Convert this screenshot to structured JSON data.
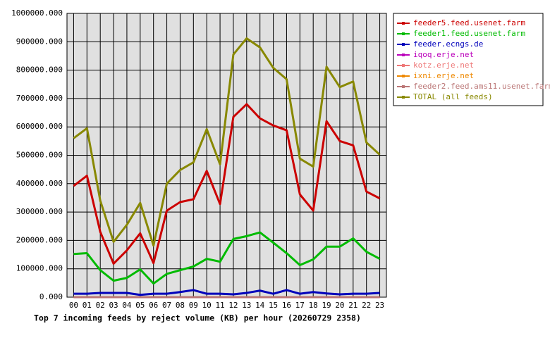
{
  "chart_data": {
    "type": "line",
    "title": "Top 7 incoming feeds by reject volume (KB) per hour (20260729 2358)",
    "categories": [
      "00",
      "01",
      "02",
      "03",
      "04",
      "05",
      "06",
      "07",
      "08",
      "09",
      "10",
      "11",
      "12",
      "13",
      "14",
      "15",
      "16",
      "17",
      "18",
      "19",
      "20",
      "21",
      "22",
      "23"
    ],
    "ylim": [
      0,
      1000000
    ],
    "yticks": [
      {
        "value": 0,
        "label": "0.000"
      },
      {
        "value": 100000,
        "label": "100000.000"
      },
      {
        "value": 200000,
        "label": "200000.000"
      },
      {
        "value": 300000,
        "label": "300000.000"
      },
      {
        "value": 400000,
        "label": "400000.000"
      },
      {
        "value": 500000,
        "label": "500000.000"
      },
      {
        "value": 600000,
        "label": "600000.000"
      },
      {
        "value": 700000,
        "label": "700000.000"
      },
      {
        "value": 800000,
        "label": "800000.000"
      },
      {
        "value": 900000,
        "label": "900000.000"
      },
      {
        "value": 1000000,
        "label": "1000000.000"
      }
    ],
    "grid": true,
    "legend": "right",
    "series": [
      {
        "name": "feeder5.feed.usenet.farm",
        "color": "#cc0000",
        "values": [
          392000,
          428000,
          230000,
          118000,
          165000,
          225000,
          120000,
          305000,
          335000,
          345000,
          445000,
          328000,
          635000,
          680000,
          630000,
          605000,
          588000,
          362000,
          305000,
          620000,
          550000,
          535000,
          372000,
          348000
        ]
      },
      {
        "name": "feeder1.feed.usenet.farm",
        "color": "#00bb00",
        "values": [
          152000,
          155000,
          95000,
          58000,
          68000,
          98000,
          48000,
          82000,
          95000,
          108000,
          135000,
          125000,
          205000,
          215000,
          228000,
          192000,
          155000,
          113000,
          133000,
          178000,
          178000,
          207000,
          160000,
          135000
        ]
      },
      {
        "name": "feeder.ecngs.de",
        "color": "#0000bb",
        "values": [
          12000,
          12000,
          15000,
          15000,
          15000,
          8000,
          12000,
          12000,
          18000,
          25000,
          12000,
          12000,
          10000,
          15000,
          23000,
          12000,
          25000,
          12000,
          18000,
          13000,
          10000,
          12000,
          12000,
          15000
        ]
      },
      {
        "name": "iqoq.erje.net",
        "color": "#bb00bb",
        "values": [
          0,
          0,
          0,
          0,
          0,
          0,
          0,
          0,
          0,
          0,
          0,
          0,
          0,
          0,
          0,
          0,
          0,
          0,
          0,
          0,
          0,
          0,
          0,
          0
        ]
      },
      {
        "name": "kotz.erje.net",
        "color": "#ee7777",
        "values": [
          0,
          0,
          0,
          0,
          0,
          0,
          0,
          0,
          0,
          0,
          0,
          0,
          0,
          0,
          0,
          0,
          0,
          0,
          0,
          0,
          0,
          0,
          0,
          0
        ]
      },
      {
        "name": "ixni.erje.net",
        "color": "#ee8800",
        "values": [
          0,
          0,
          0,
          0,
          0,
          0,
          0,
          0,
          0,
          0,
          0,
          0,
          0,
          0,
          0,
          0,
          0,
          0,
          0,
          0,
          0,
          0,
          0,
          0
        ]
      },
      {
        "name": "feeder2.feed.ams11.usenet.farm",
        "color": "#bb7777",
        "values": [
          0,
          0,
          0,
          0,
          0,
          0,
          0,
          0,
          0,
          0,
          0,
          0,
          0,
          0,
          0,
          0,
          0,
          0,
          0,
          0,
          0,
          0,
          0,
          0
        ]
      },
      {
        "name": "TOTAL (all feeds)",
        "color": "#888800",
        "values": [
          560000,
          595000,
          340000,
          195000,
          255000,
          332000,
          182000,
          400000,
          448000,
          475000,
          592000,
          468000,
          855000,
          912000,
          880000,
          808000,
          768000,
          488000,
          460000,
          812000,
          740000,
          760000,
          545000,
          502000
        ]
      }
    ]
  }
}
